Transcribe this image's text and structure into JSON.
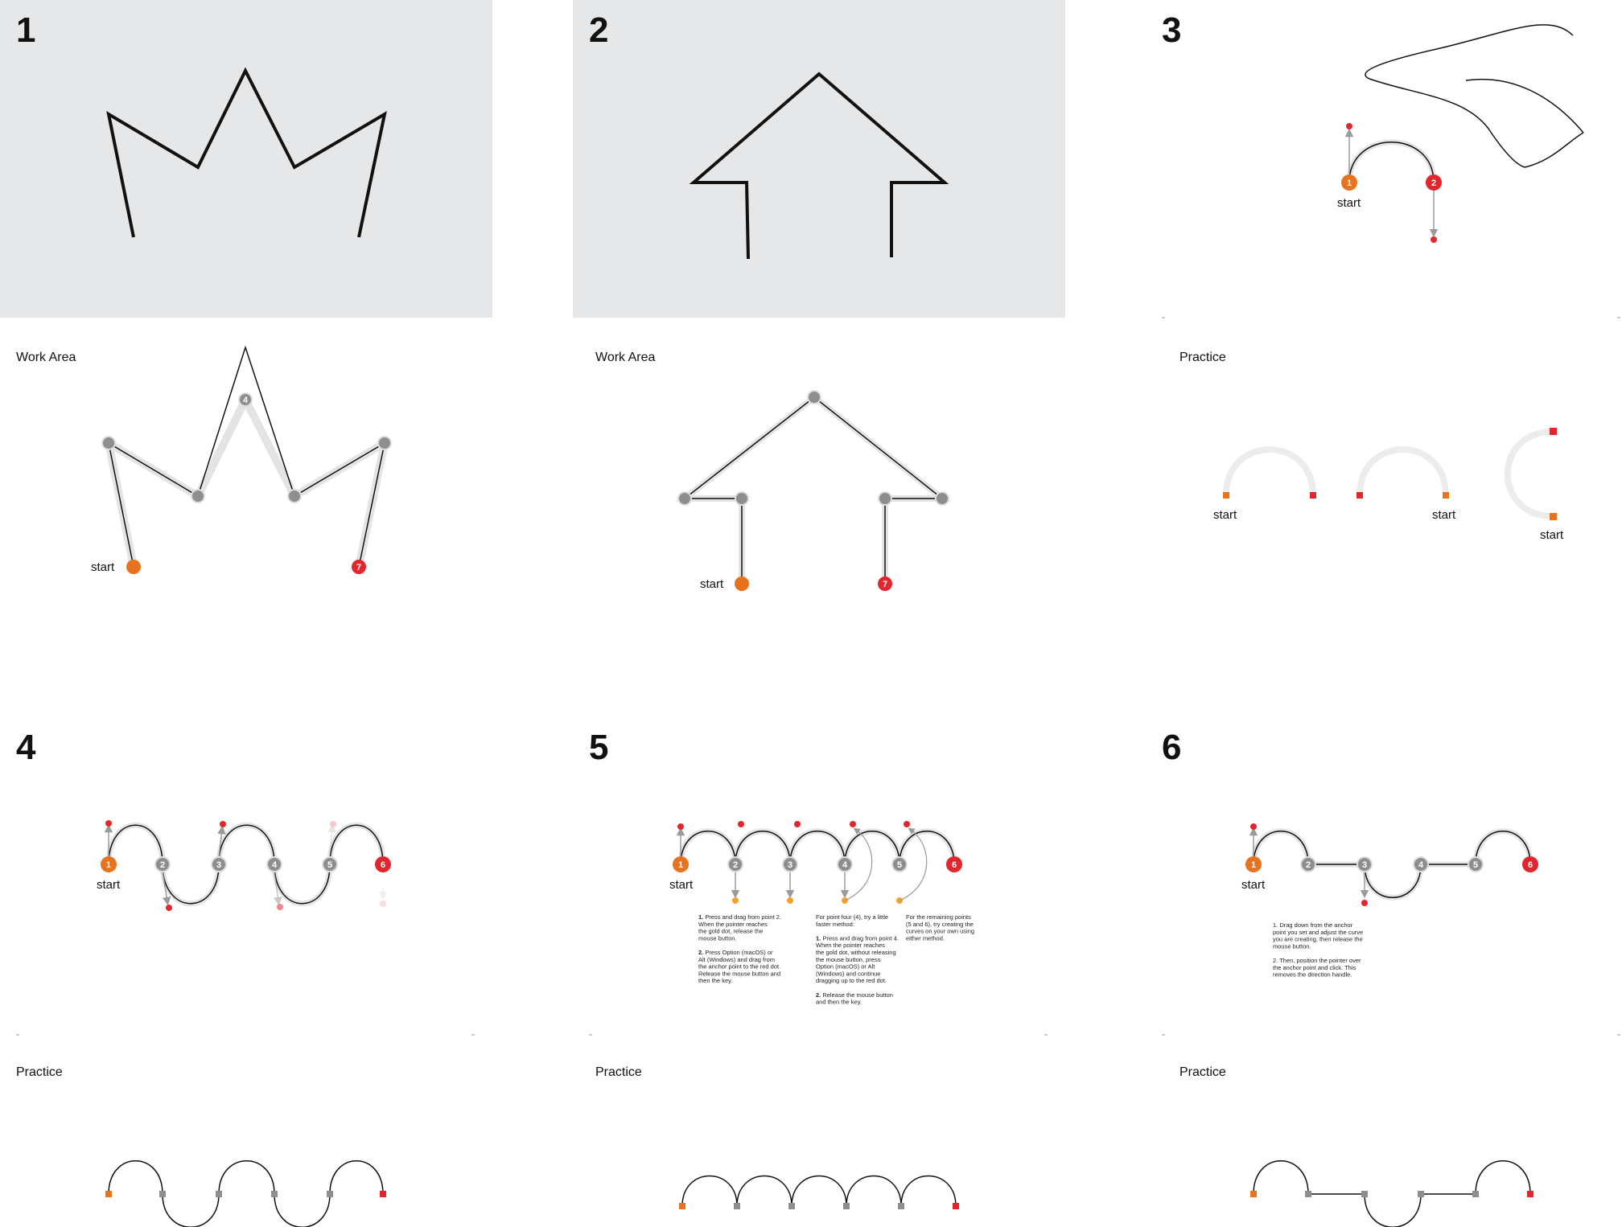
{
  "colors": {
    "panel_bg": "#e6e7e9",
    "line": "#111111",
    "anchor_gray": "#8e8e8e",
    "start_orange": "#e8731e",
    "end_red": "#e3262e",
    "guide": "#e4e4e4",
    "gold": "#f2a52a",
    "handle_gray": "#9a9a9a"
  },
  "panels": {
    "p1": {
      "number": "1",
      "label": "Work Area",
      "start_label": "start",
      "end_number": "7"
    },
    "p2": {
      "number": "2",
      "label": "Work Area",
      "start_label": "start",
      "end_number": "7"
    },
    "p3": {
      "number": "3",
      "label": "Practice",
      "start_label": "start",
      "anchor1": "1",
      "anchor2": "2",
      "practice_start_labels": [
        "start",
        "start",
        "start"
      ]
    },
    "p4": {
      "number": "4",
      "label": "Practice",
      "start_label": "start",
      "anchors": [
        "1",
        "2",
        "3",
        "4",
        "5",
        "6"
      ]
    },
    "p5": {
      "number": "5",
      "label": "Practice",
      "start_label": "start",
      "anchors": [
        "1",
        "2",
        "3",
        "4",
        "5",
        "6"
      ],
      "instructions": {
        "col1": [
          {
            "bold": "1.",
            "text": " Press and drag from point 2."
          },
          {
            "text": "When the pointer reaches"
          },
          {
            "text": "the gold dot, release the"
          },
          {
            "text": "mouse button."
          },
          {
            "text": ""
          },
          {
            "bold": "2.",
            "text": " Press Option (macOS) or"
          },
          {
            "text": "Alt (Windows) and drag from"
          },
          {
            "text": "the anchor point to the red dot."
          },
          {
            "text": "Release the mouse button and"
          },
          {
            "text": "then the key."
          }
        ],
        "col2": [
          {
            "text": "For point four (4), try a little"
          },
          {
            "text": "faster method:"
          },
          {
            "text": ""
          },
          {
            "bold": "1.",
            "text": " Press and drag from point 4."
          },
          {
            "text": "When the pointer reaches"
          },
          {
            "text": "the gold dot, without releasing"
          },
          {
            "text": "the mouse button, press"
          },
          {
            "text": "Option (macOS) or Alt"
          },
          {
            "text": "(Windows) and continue"
          },
          {
            "text": "dragging up to the red dot."
          },
          {
            "text": ""
          },
          {
            "bold": "2.",
            "text": " Release the mouse button"
          },
          {
            "text": "and then the key."
          }
        ],
        "col3": [
          {
            "text": "For the remaining points"
          },
          {
            "text": "(5 and 6), try creating the"
          },
          {
            "text": "curves on your own using"
          },
          {
            "text": "either method."
          }
        ]
      }
    },
    "p6": {
      "number": "6",
      "label": "Practice",
      "start_label": "start",
      "anchors": [
        "1",
        "2",
        "3",
        "4",
        "5",
        "6"
      ],
      "instructions": [
        {
          "text": "1. Drag down from the anchor"
        },
        {
          "text": "point you set and adjust the curve"
        },
        {
          "text": "you are creating, then release the"
        },
        {
          "text": "mouse button."
        },
        {
          "text": ""
        },
        {
          "text": "2. Then, position the pointer over"
        },
        {
          "text": "the anchor point and click. This"
        },
        {
          "text": "removes the direction handle."
        }
      ]
    }
  }
}
